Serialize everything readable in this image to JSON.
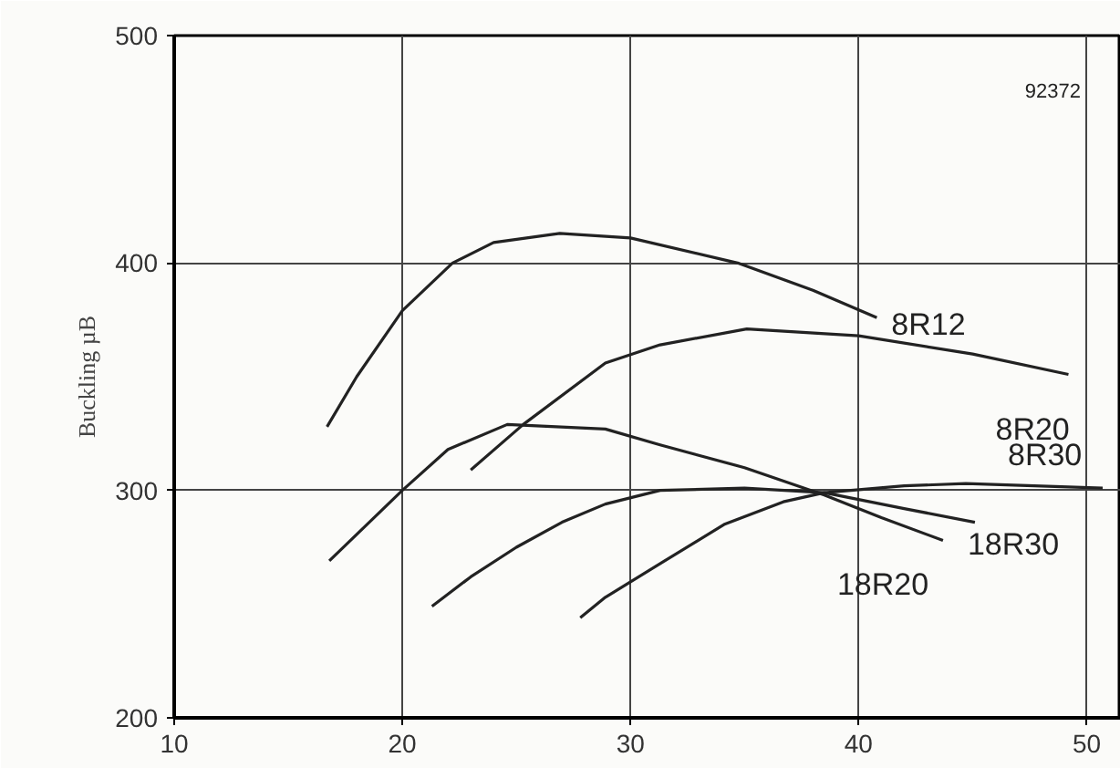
{
  "chart_data": {
    "type": "line",
    "ylabel": "Buckling µB",
    "xlim": [
      10,
      51.5
    ],
    "ylim": [
      200,
      500
    ],
    "xticks": [
      10,
      20,
      30,
      40,
      50
    ],
    "yticks": [
      200,
      300,
      400,
      500
    ],
    "grid": true,
    "marker": "none",
    "line_style": "solid",
    "annotations": [
      "92372"
    ],
    "series": [
      {
        "name": "8R12",
        "color": "#222222",
        "x": [
          16.7,
          18,
          20,
          22.2,
          24,
          26.9,
          30,
          34.7,
          38,
          40.8
        ],
        "values": [
          328,
          350,
          379,
          400,
          409,
          413,
          411,
          400,
          388,
          376
        ]
      },
      {
        "name": "8R20",
        "color": "#222222",
        "x": [
          23.0,
          25.3,
          28.9,
          31.3,
          35.1,
          40,
          45,
          49.2
        ],
        "values": [
          309,
          329,
          356,
          364,
          371,
          368,
          360,
          351
        ]
      },
      {
        "name": "8R30",
        "color": "#222222",
        "x": [
          27.8,
          28.9,
          31.5,
          34.1,
          36.7,
          38.5,
          42,
          44.7,
          50.7
        ],
        "values": [
          244,
          253,
          269,
          285,
          295,
          299,
          302,
          303,
          301
        ]
      },
      {
        "name": "18R30",
        "color": "#222222",
        "x": [
          21.3,
          23,
          25,
          27,
          28.9,
          31.3,
          35,
          38.5,
          42,
          45.1
        ],
        "values": [
          249,
          262,
          275,
          286,
          294,
          300,
          301,
          299,
          292,
          286
        ]
      },
      {
        "name": "18R20",
        "color": "#222222",
        "x": [
          16.8,
          20,
          22,
          24.6,
          28.9,
          31.3,
          35,
          38.5,
          41,
          43.7
        ],
        "values": [
          269,
          300,
          318,
          329,
          327,
          320,
          310,
          298,
          288,
          278
        ]
      }
    ]
  }
}
